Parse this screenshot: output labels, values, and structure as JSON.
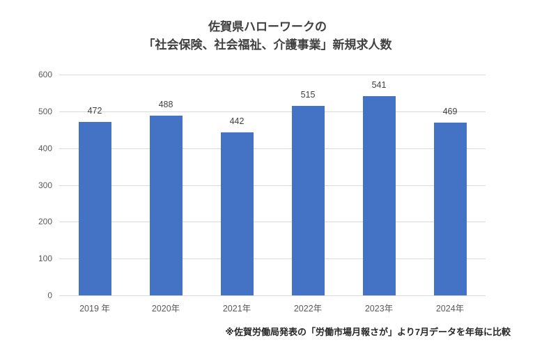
{
  "title": {
    "line1": "佐賀県ハローワークの",
    "line2": "「社会保険、社会福祉、介護事業」新規求人数"
  },
  "footnote": "※佐賀労働局発表の「労働市場月報さが」より7月データを年毎に比較",
  "chart_data": {
    "type": "bar",
    "title": "佐賀県ハローワークの「社会保険、社会福祉、介護事業」新規求人数",
    "categories": [
      "2019 年",
      "2020年",
      "2021年",
      "2022年",
      "2023年",
      "2024年"
    ],
    "values": [
      472,
      488,
      442,
      515,
      541,
      469
    ],
    "xlabel": "",
    "ylabel": "",
    "ylim": [
      0,
      600
    ],
    "yticks": [
      0,
      100,
      200,
      300,
      400,
      500,
      600
    ],
    "grid": true,
    "legend": false,
    "data_labels": true,
    "colors": {
      "bar": "#4472c4",
      "gridline": "#d9d9d9",
      "axis_text": "#595959",
      "value_label": "#404040",
      "title_text": "#404040",
      "footnote_text": "#262626"
    }
  }
}
